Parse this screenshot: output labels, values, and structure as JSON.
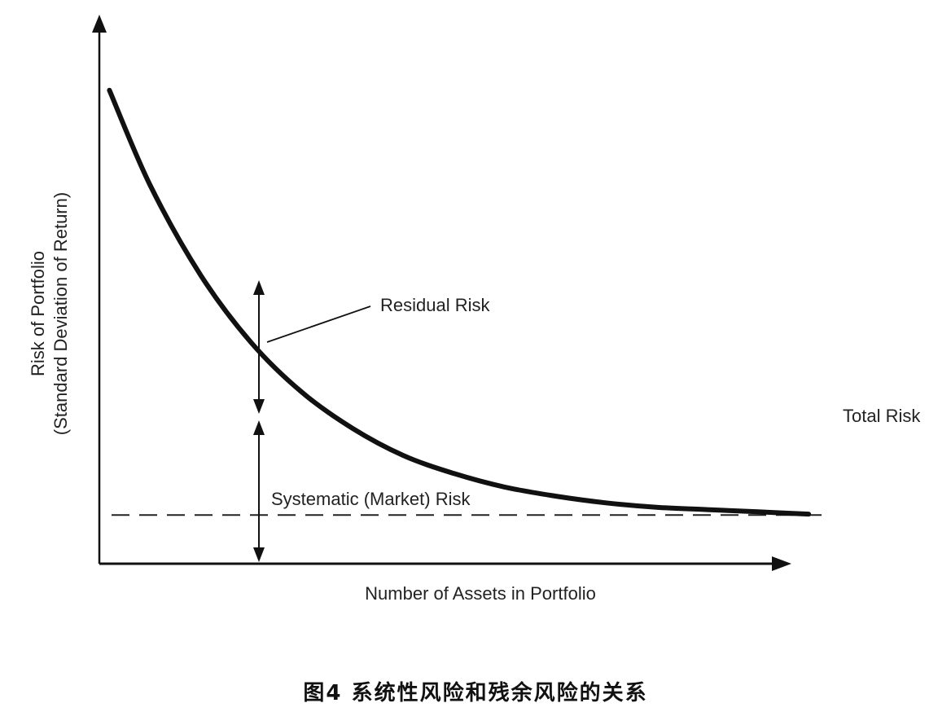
{
  "chart_data": {
    "type": "line",
    "xlabel": "Number of Assets in Portfolio",
    "ylabel_line1": "Risk of Portfolio",
    "ylabel_line2": "(Standard Deviation of Return)",
    "series": [
      {
        "x": [
          1,
          5,
          10,
          15,
          20,
          25,
          30,
          35,
          40,
          45,
          50,
          55,
          60,
          65,
          70
        ],
        "values": [
          100,
          79,
          59,
          44,
          33,
          25,
          19,
          15,
          12,
          10,
          8.5,
          7.5,
          7,
          6.5,
          6
        ],
        "color": "#111111"
      }
    ],
    "systematic_risk_level": 5.8,
    "xlim": [
      0,
      72
    ],
    "ylim": [
      -5,
      107
    ],
    "annotations": {
      "residual": "Residual Risk",
      "systematic": "Systematic (Market) Risk",
      "total": "Total Risk"
    }
  },
  "caption": "图4  系统性风险和残余风险的关系"
}
